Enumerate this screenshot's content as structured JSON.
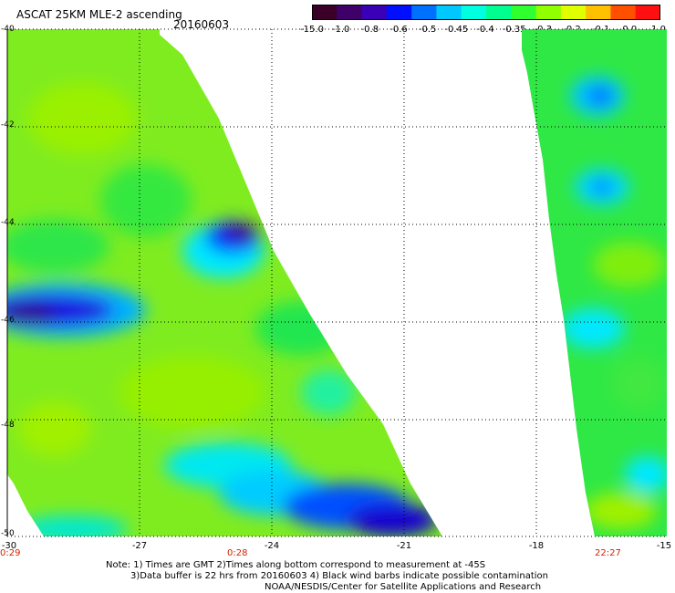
{
  "header": {
    "title": "ASCAT 25KM MLE-2 ascending",
    "date": "20160603"
  },
  "colorbar": {
    "labels": [
      "-15.0",
      "-1.0",
      "-0.8",
      "-0.6",
      "-0.5",
      "-0.45",
      "-0.4",
      "-0.35",
      "-0.3",
      "-0.2",
      "-0.1",
      "0.0",
      "1.0"
    ],
    "colors": [
      "#3b0028",
      "#40006a",
      "#3a00b8",
      "#0010ff",
      "#0070ff",
      "#00c8ff",
      "#00ffe0",
      "#00ff90",
      "#30ff30",
      "#90ff00",
      "#e0ff00",
      "#ffc000",
      "#ff5000",
      "#ff1010"
    ]
  },
  "axes": {
    "x_ticks": [
      "-27",
      "-24",
      "-21",
      "-18",
      "-15"
    ],
    "y_ticks": [
      "-40",
      "-42",
      "-44",
      "-46",
      "-48",
      "-50"
    ],
    "left_label": "-30",
    "times": [
      "0:29",
      "0:28",
      "22:27"
    ]
  },
  "notes": {
    "line1": "Note: 1) Times are GMT 2)Times along bottom correspond to measurement at -45S",
    "line2": "3)Data buffer is 22 hrs from 20160603 4) Black wind barbs indicate possible contamination",
    "line3": "NOAA/NESDIS/Center for Satellite Applications and Research"
  }
}
